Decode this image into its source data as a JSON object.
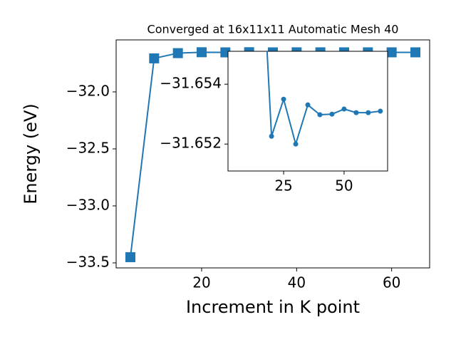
{
  "chart_data": {
    "type": "line",
    "title": "Converged at 16x11x11 Automatic Mesh 40",
    "x_label": "Increment in K point",
    "y_label": "Energy (eV)",
    "x": [
      5,
      10,
      15,
      20,
      25,
      30,
      35,
      40,
      45,
      50,
      55,
      60,
      65
    ],
    "series": [
      {
        "name": "Energy",
        "color": "#1f77b4",
        "values": [
          -33.45,
          -31.706,
          -31.66,
          -31.65226,
          -31.6535,
          -31.652,
          -31.65331,
          -31.65298,
          -31.653,
          -31.65317,
          -31.65305,
          -31.65305,
          -31.6531
        ]
      }
    ],
    "xlim": [
      2,
      68
    ],
    "ylim": [
      -33.544,
      -31.544
    ],
    "xticks": [
      20,
      40,
      60
    ],
    "yticks": [
      {
        "value": -32.0,
        "label": "−32.0"
      },
      {
        "value": -32.5,
        "label": "−32.5"
      },
      {
        "value": -33.0,
        "label": "−33.0"
      },
      {
        "value": -33.5,
        "label": "−33.5"
      }
    ],
    "inset": {
      "xlim": [
        2,
        68
      ],
      "ylim": [
        -31.6511,
        -31.6551
      ],
      "xticks": [
        25,
        50
      ],
      "yticks": [
        {
          "value": -31.654,
          "label": "−31.654"
        },
        {
          "value": -31.652,
          "label": "−31.652"
        }
      ]
    }
  }
}
